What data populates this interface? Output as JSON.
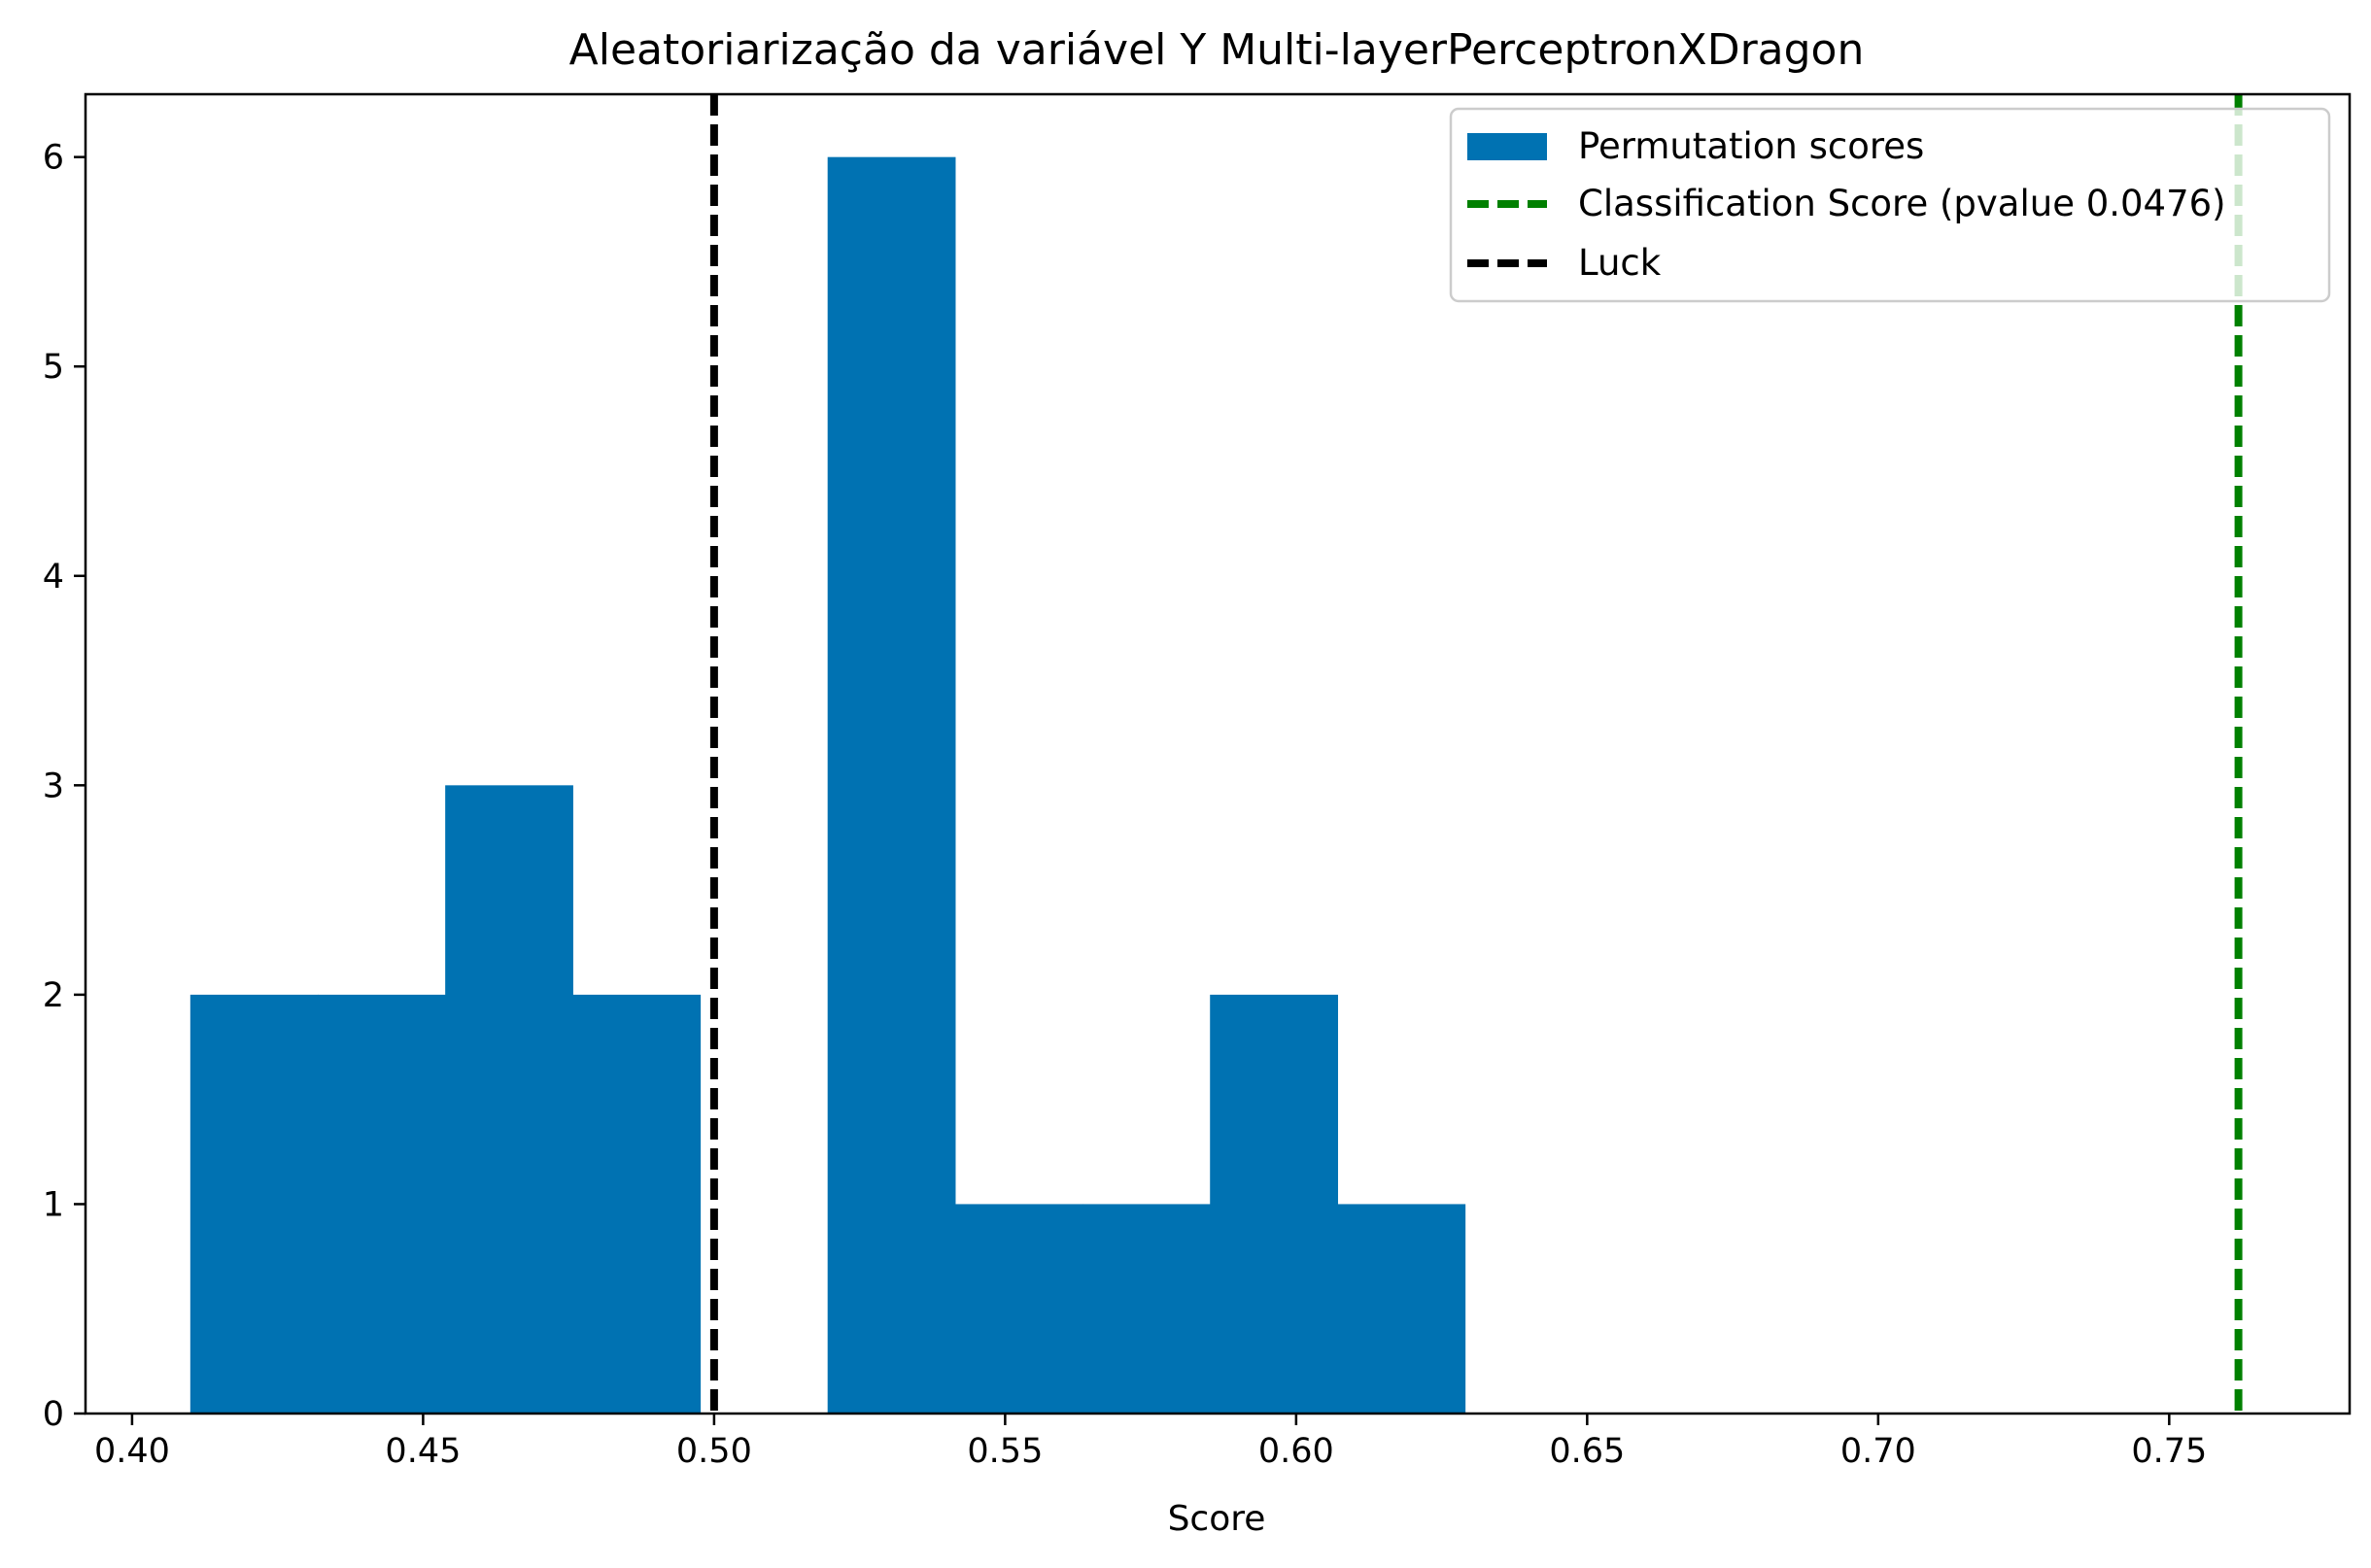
{
  "chart_data": {
    "type": "bar",
    "title": "Aleatoriarização da variável Y Multi-layerPerceptronXDragon",
    "xlabel": "Score",
    "ylabel": "",
    "xlim": [
      0.392,
      0.781
    ],
    "ylim": [
      0,
      6.3
    ],
    "x_ticks": [
      "0.40",
      "0.45",
      "0.50",
      "0.55",
      "0.60",
      "0.65",
      "0.70",
      "0.75"
    ],
    "y_ticks": [
      "0",
      "1",
      "2",
      "3",
      "4",
      "5",
      "6"
    ],
    "grid": false,
    "legend_position": "top-right",
    "histogram": {
      "name": "Permutation scores",
      "color": "#0072b2",
      "bins": [
        {
          "x0": 0.41,
          "x1": 0.4319,
          "count": 2
        },
        {
          "x0": 0.4319,
          "x1": 0.4538,
          "count": 2
        },
        {
          "x0": 0.4538,
          "x1": 0.4757,
          "count": 3
        },
        {
          "x0": 0.4757,
          "x1": 0.4976,
          "count": 2
        },
        {
          "x0": 0.4976,
          "x1": 0.5195,
          "count": 0
        },
        {
          "x0": 0.5195,
          "x1": 0.5414,
          "count": 6
        },
        {
          "x0": 0.5414,
          "x1": 0.5633,
          "count": 1
        },
        {
          "x0": 0.5633,
          "x1": 0.5852,
          "count": 1
        },
        {
          "x0": 0.5852,
          "x1": 0.6071,
          "count": 2
        },
        {
          "x0": 0.6071,
          "x1": 0.629,
          "count": 1
        }
      ]
    },
    "lines": [
      {
        "name": "Classification Score (pvalue 0.0476)",
        "x": 0.7619,
        "color": "#008000",
        "style": "dashed"
      },
      {
        "name": "Luck",
        "x": 0.5,
        "color": "#000000",
        "style": "dashed"
      }
    ]
  }
}
